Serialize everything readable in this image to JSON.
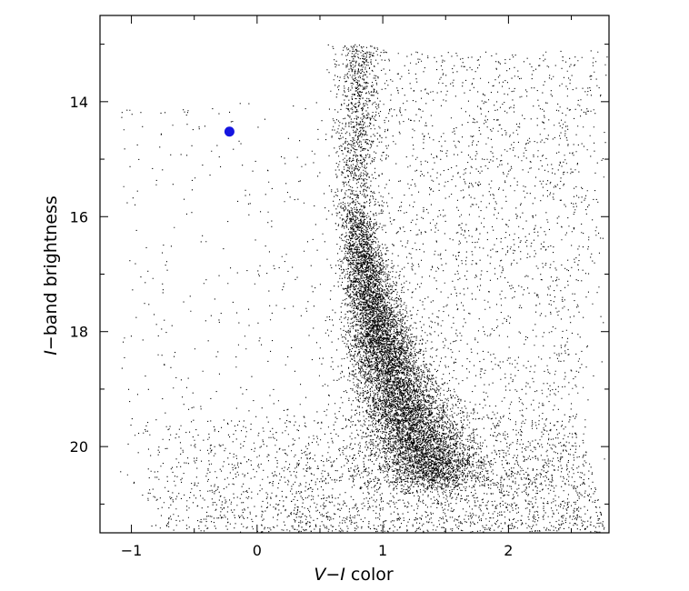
{
  "chart_data": {
    "type": "scatter",
    "title": "",
    "xlabel": "V−I color",
    "xlabel_parts": {
      "v": "V",
      "mid": "−",
      "i": "I",
      "rest": " color"
    },
    "ylabel": "I−band brightness",
    "ylabel_parts": {
      "i": "I",
      "rest": "−band brightness"
    },
    "xlim": [
      -1.25,
      2.8
    ],
    "ylim": [
      12.5,
      21.5
    ],
    "y_inverted": true,
    "x_major_ticks": [
      -1,
      0,
      1,
      2
    ],
    "x_tick_labels": [
      "−1",
      "0",
      "1",
      "2"
    ],
    "x_minor_step": 0.5,
    "y_major_ticks": [
      14,
      16,
      18,
      20
    ],
    "y_tick_labels": [
      "14",
      "16",
      "18",
      "20"
    ],
    "y_minor_step": 1,
    "grid": false,
    "legend": "none",
    "series": [
      {
        "kind": "field-stars",
        "color": "#000000",
        "point_count": 15000,
        "components": [
          {
            "feature": "main sequence",
            "x": 1.0,
            "y": 18.5,
            "weight": 0.55
          },
          {
            "feature": "red giant branch",
            "x": 1.6,
            "y": 16.5,
            "weight": 0.2
          },
          {
            "feature": "faint background",
            "x": 0.6,
            "y": 20.6,
            "weight": 0.25
          }
        ]
      },
      {
        "name": "",
        "color": "#1515e0",
        "points": [
          {
            "x": -0.22,
            "y": 14.52
          }
        ]
      }
    ]
  }
}
